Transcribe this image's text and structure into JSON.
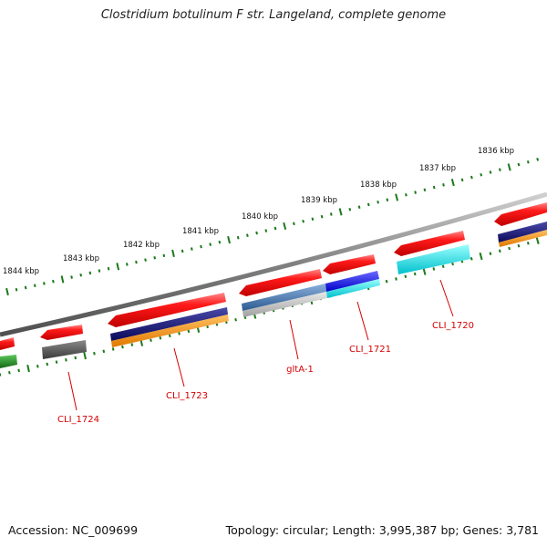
{
  "title": "Clostridium botulinum F str. Langeland, complete genome",
  "ruler": {
    "tick_labels": [
      "1836 kbp",
      "1837 kbp",
      "1838 kbp",
      "1839 kbp",
      "1840 kbp",
      "1841 kbp",
      "1842 kbp",
      "1843 kbp",
      "1844 kbp"
    ],
    "tick_color": "#1a7a1a",
    "label_color": "#111111"
  },
  "backbone_color": "#808080",
  "genes": [
    {
      "label": "CLI_1720",
      "color": "#d40000"
    },
    {
      "label": "CLI_1721",
      "color": "#d40000"
    },
    {
      "label": "gltA-1",
      "color": "#d40000"
    },
    {
      "label": "CLI_1723",
      "color": "#d40000"
    },
    {
      "label": "CLI_1724",
      "color": "#d40000"
    }
  ],
  "colors": {
    "gene_red": "#ff1a1a",
    "cog_navy": "#10106e",
    "cog_orange": "#ff9a1a",
    "cog_blue": "#1010ff",
    "cog_cyan": "#10e8f0",
    "cog_steel": "#4a78b0",
    "cog_gray": "#bfbfbf",
    "cog_dark_gray": "#595959",
    "cog_green": "#1f8f1f"
  },
  "footer": {
    "accession": "Accession: NC_009699",
    "summary": "Topology: circular; Length: 3,995,387 bp; Genes: 3,781"
  }
}
